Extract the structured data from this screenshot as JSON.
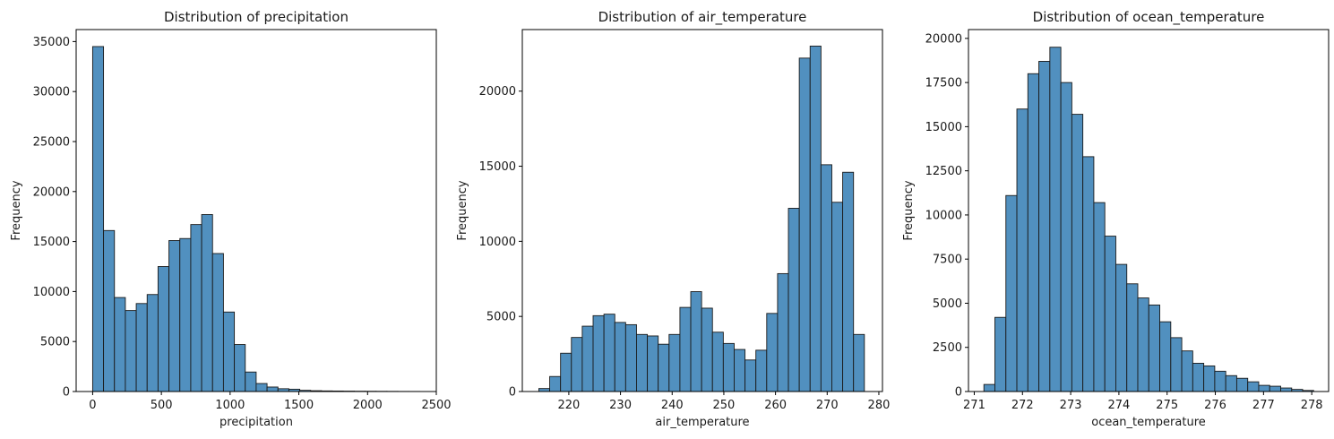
{
  "chart_data": [
    {
      "type": "bar",
      "title": "Distribution of precipitation",
      "xlabel": "precipitation",
      "ylabel": "Frequency",
      "xlim": [
        -120,
        2500
      ],
      "ylim": [
        0,
        36200
      ],
      "xticks": [
        0,
        500,
        1000,
        1500,
        2000,
        2500
      ],
      "yticks": [
        0,
        5000,
        10000,
        15000,
        20000,
        25000,
        30000,
        35000
      ],
      "xtick_labels": [
        "0",
        "500",
        "1000",
        "1500",
        "2000",
        "2500"
      ],
      "ytick_labels": [
        "0",
        "5000",
        "10000",
        "15000",
        "20000",
        "25000",
        "30000",
        "35000"
      ],
      "bin_start": 0,
      "bin_width": 79.3,
      "values": [
        34500,
        16100,
        9400,
        8100,
        8800,
        9700,
        12500,
        15100,
        15300,
        16700,
        17700,
        13800,
        7950,
        4700,
        1950,
        800,
        450,
        280,
        230,
        120,
        80,
        60,
        50,
        40,
        30,
        25,
        20,
        15,
        10,
        8
      ]
    },
    {
      "type": "bar",
      "title": "Distribution of air_temperature",
      "xlabel": "air_temperature",
      "ylabel": "Frequency",
      "xlim": [
        211,
        280.7
      ],
      "ylim": [
        0,
        24100
      ],
      "xticks": [
        220,
        230,
        240,
        250,
        260,
        270,
        280
      ],
      "yticks": [
        0,
        5000,
        10000,
        15000,
        20000
      ],
      "xtick_labels": [
        "220",
        "230",
        "240",
        "250",
        "260",
        "270",
        "280"
      ],
      "ytick_labels": [
        "0",
        "5000",
        "10000",
        "15000",
        "20000"
      ],
      "bin_start": 214.2,
      "bin_width": 2.1,
      "values": [
        200,
        1000,
        2550,
        3600,
        4350,
        5050,
        5150,
        4600,
        4450,
        3800,
        3700,
        3150,
        3800,
        5600,
        6650,
        5550,
        3950,
        3200,
        2800,
        2100,
        2750,
        5200,
        7850,
        12200,
        22200,
        23000,
        15100,
        12600,
        14600,
        3800
      ]
    },
    {
      "type": "bar",
      "title": "Distribution of ocean_temperature",
      "xlabel": "ocean_temperature",
      "ylabel": "Frequency",
      "xlim": [
        270.88,
        278.35
      ],
      "ylim": [
        0,
        20500
      ],
      "xticks": [
        271,
        272,
        273,
        274,
        275,
        276,
        277,
        278
      ],
      "yticks": [
        0,
        2500,
        5000,
        7500,
        10000,
        12500,
        15000,
        17500,
        20000
      ],
      "xtick_labels": [
        "271",
        "272",
        "273",
        "274",
        "275",
        "276",
        "277",
        "278"
      ],
      "ytick_labels": [
        "0",
        "2500",
        "5000",
        "7500",
        "10000",
        "12500",
        "15000",
        "17500",
        "20000"
      ],
      "bin_start": 271.2,
      "bin_width": 0.228,
      "values": [
        400,
        4200,
        11100,
        16000,
        18000,
        18700,
        19500,
        17500,
        15700,
        13300,
        10700,
        8800,
        7200,
        6100,
        5300,
        4900,
        3950,
        3050,
        2300,
        1600,
        1450,
        1150,
        900,
        750,
        550,
        350,
        300,
        200,
        120,
        60
      ]
    }
  ]
}
